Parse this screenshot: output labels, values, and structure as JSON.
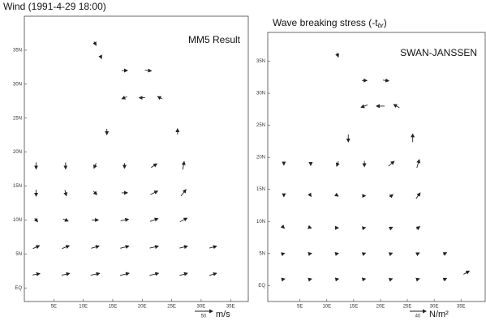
{
  "chart_data": [
    {
      "type": "quiver",
      "title": "Wind (1991-4-29 18:00)",
      "annotation": "MM5 Result",
      "reference_value": 50,
      "reference_unit": "m/s",
      "color": "#222222",
      "xlim": [
        0,
        38
      ],
      "ylim": [
        -2,
        40
      ],
      "xticks": [
        {
          "value": 5,
          "label": "5E"
        },
        {
          "value": 10,
          "label": "10E"
        },
        {
          "value": 15,
          "label": "15E"
        },
        {
          "value": 20,
          "label": "20E"
        },
        {
          "value": 25,
          "label": "25E"
        },
        {
          "value": 30,
          "label": "30E"
        },
        {
          "value": 35,
          "label": "35E"
        }
      ],
      "yticks": [
        {
          "value": 0,
          "label": "EQ"
        },
        {
          "value": 5,
          "label": "5N"
        },
        {
          "value": 10,
          "label": "10N"
        },
        {
          "value": 15,
          "label": "15N"
        },
        {
          "value": 20,
          "label": "20N"
        },
        {
          "value": 25,
          "label": "25N"
        },
        {
          "value": 30,
          "label": "30N"
        },
        {
          "value": 35,
          "label": "35N"
        }
      ],
      "x": [
        2,
        7,
        12,
        17,
        22,
        27,
        32,
        2,
        7,
        12,
        17,
        22,
        27,
        32,
        2,
        7,
        12,
        17,
        22,
        27,
        2,
        7,
        12,
        17,
        22,
        27,
        2,
        7,
        12,
        17,
        22,
        27,
        14,
        26,
        17,
        20,
        23,
        17,
        21,
        12,
        13
      ],
      "y": [
        2,
        2,
        2,
        2,
        2,
        2,
        2,
        6,
        6,
        6,
        6,
        6,
        6,
        6,
        10,
        10,
        10,
        10,
        10,
        10,
        14,
        14,
        14,
        14,
        14,
        14,
        18,
        18,
        18,
        18,
        18,
        18,
        23,
        23,
        28,
        28,
        28,
        32,
        32,
        36,
        34
      ],
      "u": [
        20,
        22,
        25,
        25,
        25,
        22,
        20,
        18,
        20,
        22,
        24,
        24,
        22,
        20,
        8,
        14,
        18,
        22,
        22,
        20,
        0,
        4,
        10,
        16,
        20,
        14,
        0,
        0,
        -6,
        0,
        16,
        4,
        0,
        0,
        -14,
        -16,
        -12,
        16,
        18,
        6,
        4
      ],
      "v": [
        4,
        5,
        5,
        6,
        6,
        6,
        6,
        8,
        8,
        6,
        6,
        5,
        5,
        5,
        -10,
        -6,
        0,
        4,
        8,
        10,
        -18,
        -16,
        -10,
        0,
        10,
        18,
        -18,
        -18,
        -14,
        -14,
        10,
        22,
        -16,
        16,
        -6,
        0,
        6,
        0,
        -2,
        -10,
        -8
      ]
    },
    {
      "type": "quiver",
      "title": "Wave breaking stress (-t",
      "title_subscript": "br",
      "title_end": ")",
      "annotation": "SWAN-JANSSEN",
      "reference_value": 40,
      "reference_unit": "N/m²",
      "color": "#222222",
      "xlim": [
        -1,
        39.5
      ],
      "ylim": [
        -2.5,
        39.5
      ],
      "xticks": [
        {
          "value": 5,
          "label": "5E"
        },
        {
          "value": 10,
          "label": "10E"
        },
        {
          "value": 15,
          "label": "15E"
        },
        {
          "value": 20,
          "label": "20E"
        },
        {
          "value": 25,
          "label": "25E"
        },
        {
          "value": 30,
          "label": "30E"
        },
        {
          "value": 35,
          "label": "35E"
        }
      ],
      "yticks": [
        {
          "value": 0,
          "label": "EQ"
        },
        {
          "value": 5,
          "label": "5N"
        },
        {
          "value": 10,
          "label": "10N"
        },
        {
          "value": 15,
          "label": "15N"
        },
        {
          "value": 20,
          "label": "20N"
        },
        {
          "value": 25,
          "label": "25N"
        },
        {
          "value": 30,
          "label": "30N"
        },
        {
          "value": 35,
          "label": "35N"
        }
      ],
      "x": [
        2,
        7,
        12,
        17,
        22,
        27,
        32,
        36,
        2,
        7,
        12,
        17,
        22,
        27,
        32,
        2,
        7,
        12,
        17,
        22,
        27,
        2,
        7,
        12,
        17,
        22,
        27,
        2,
        7,
        12,
        17,
        22,
        27,
        14,
        26,
        17,
        20,
        23,
        17,
        21,
        12
      ],
      "y": [
        1,
        1,
        1,
        1,
        1,
        1,
        1,
        2,
        5,
        5,
        5,
        5,
        5,
        5,
        5,
        9,
        9,
        9,
        9,
        9,
        9,
        14,
        14,
        14,
        14,
        14,
        14,
        19,
        19,
        19,
        19,
        19,
        19,
        23,
        23,
        28,
        28,
        28,
        32,
        32,
        36
      ],
      "u": [
        4,
        4,
        5,
        5,
        5,
        6,
        8,
        14,
        3,
        4,
        4,
        5,
        5,
        6,
        8,
        2,
        3,
        4,
        5,
        6,
        8,
        0,
        2,
        3,
        5,
        8,
        10,
        0,
        0,
        -4,
        0,
        14,
        6,
        0,
        0,
        -16,
        -20,
        -14,
        12,
        14,
        4
      ],
      "v": [
        1,
        1,
        1,
        1,
        2,
        2,
        4,
        8,
        1,
        1,
        1,
        2,
        2,
        3,
        4,
        -2,
        -1,
        0,
        1,
        3,
        6,
        -4,
        -3,
        -2,
        0,
        6,
        14,
        -6,
        -8,
        -12,
        -14,
        12,
        20,
        -18,
        20,
        -6,
        0,
        8,
        0,
        -2,
        -10
      ]
    }
  ]
}
